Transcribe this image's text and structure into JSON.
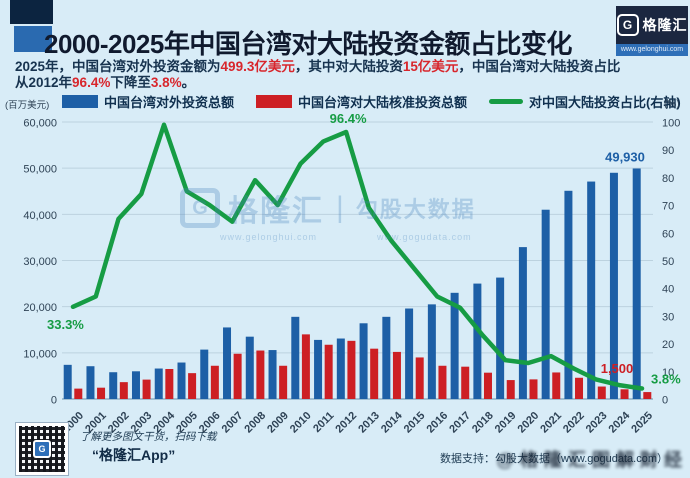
{
  "header": {
    "title": "2000-2025年中国台湾对大陆投资金额占比变化",
    "logo": {
      "g": "G",
      "brand": "格隆汇",
      "url": "www.gelonghui.com"
    },
    "subtitle_lines": [
      [
        {
          "text": "2025年，中国台湾对外投资金额为",
          "highlight": false
        },
        {
          "text": "499.3亿美元",
          "highlight": true
        },
        {
          "text": "，其中对大陆投资",
          "highlight": false
        },
        {
          "text": "15亿美元",
          "highlight": true
        },
        {
          "text": "，中国台湾对大陆投资占比",
          "highlight": false
        }
      ],
      [
        {
          "text": "从2012年",
          "highlight": false
        },
        {
          "text": "96.4%",
          "highlight": true
        },
        {
          "text": "下降至",
          "highlight": false
        },
        {
          "text": "3.8%",
          "highlight": true
        },
        {
          "text": "。",
          "highlight": false
        }
      ]
    ]
  },
  "legend": [
    {
      "label": "中国台湾对外投资总额",
      "swatch": "bar",
      "color": "#1d5fa6"
    },
    {
      "label": "中国台湾对大陆核准投资总额",
      "swatch": "bar",
      "color": "#cd1f24"
    },
    {
      "label": "对中国大陆投资占比(右轴)",
      "swatch": "line",
      "color": "#169c44"
    }
  ],
  "chart_data": {
    "type": "bar+line",
    "title": "2000-2025年中国台湾对大陆投资金额占比变化",
    "categories": [
      "2000",
      "2001",
      "2002",
      "2003",
      "2004",
      "2005",
      "2006",
      "2007",
      "2008",
      "2009",
      "2010",
      "2011",
      "2012",
      "2013",
      "2014",
      "2015",
      "2016",
      "2017",
      "2018",
      "2019",
      "2020",
      "2021",
      "2022",
      "2023",
      "2024",
      "2025"
    ],
    "series": [
      {
        "name": "中国台湾对外投资总额",
        "type": "bar",
        "axis": "left",
        "color": "#1d5fa6",
        "values": [
          7400,
          7100,
          5800,
          6000,
          6600,
          7900,
          10700,
          15500,
          13500,
          10600,
          17800,
          12800,
          13100,
          16400,
          17800,
          19600,
          20500,
          23000,
          25000,
          26300,
          32900,
          41000,
          45100,
          47100,
          49000,
          49930
        ]
      },
      {
        "name": "中国台湾对大陆核准投资总额",
        "type": "bar",
        "axis": "left",
        "color": "#cd1f24",
        "values": [
          2250,
          2450,
          3650,
          4200,
          6500,
          5600,
          7200,
          9800,
          10500,
          7200,
          14000,
          11750,
          12600,
          10900,
          10200,
          9000,
          7200,
          7000,
          5700,
          4100,
          4250,
          5750,
          4600,
          2700,
          2100,
          1500
        ]
      },
      {
        "name": "对中国大陆投资占比(右轴)",
        "type": "line",
        "axis": "right",
        "color": "#169c44",
        "values": [
          33.3,
          37,
          65,
          74,
          99,
          75,
          70,
          64,
          79,
          70,
          85,
          93,
          96.4,
          69,
          57,
          47,
          37,
          33,
          23,
          14,
          13,
          15.5,
          11,
          7,
          5,
          3.8
        ]
      }
    ],
    "left_axis": {
      "unit": "(百万美元)",
      "min": 0,
      "max": 60000,
      "ticks": [
        "0",
        "10,000",
        "20,000",
        "30,000",
        "40,000",
        "50,000",
        "60,000"
      ]
    },
    "right_axis": {
      "unit": "(%)",
      "min": 0,
      "max": 100,
      "ticks": [
        "0",
        "10",
        "20",
        "30",
        "40",
        "50",
        "60",
        "70",
        "80",
        "90",
        "100"
      ]
    },
    "grid": true,
    "legend_position": "top",
    "annotations": [
      {
        "text": "33.3%",
        "series": 2,
        "year": "2000"
      },
      {
        "text": "96.4%",
        "series": 2,
        "year": "2012"
      },
      {
        "text": "49,930",
        "series": 0,
        "year": "2025"
      },
      {
        "text": "1,500",
        "series": 1,
        "year": "2025"
      },
      {
        "text": "3.8%",
        "series": 2,
        "year": "2025"
      }
    ]
  },
  "watermark_center": {
    "g": "G",
    "brand": "格隆汇",
    "divider": "|",
    "partner": "勾股大数据",
    "brand_url": "www.gelonghui.com",
    "partner_url": "www.gogudata.com"
  },
  "footer": {
    "qr_caption_1": "了解更多图文干货，扫码下载",
    "qr_caption_2": "“格隆汇App”",
    "data_support": "数据支持：勾股大数据（www.gogudata.com）",
    "stamp": "@格隆汇图解财经"
  }
}
